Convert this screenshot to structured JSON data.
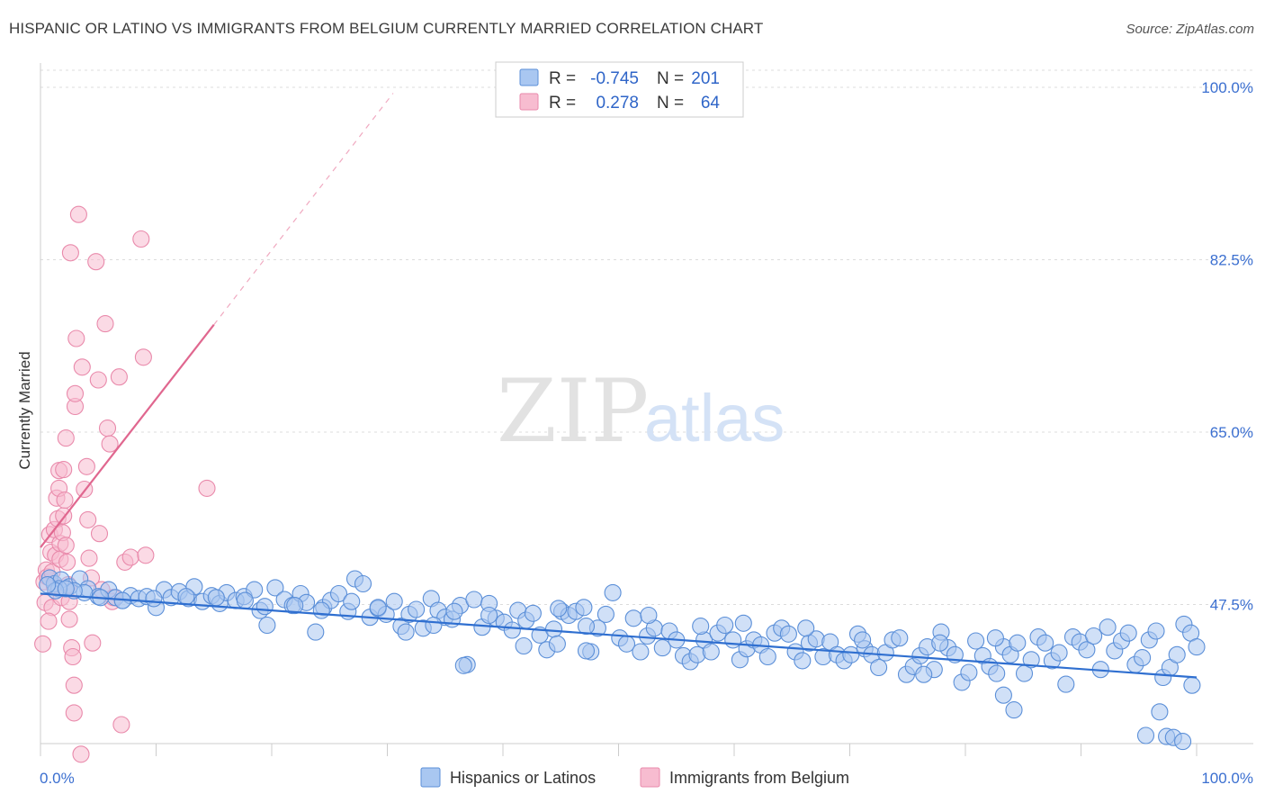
{
  "title": "HISPANIC OR LATINO VS IMMIGRANTS FROM BELGIUM CURRENTLY MARRIED CORRELATION CHART",
  "source": "Source: ZipAtlas.com",
  "watermark": {
    "part1": "ZIP",
    "part2": "atlas"
  },
  "colors": {
    "blue_fill": "#a9c7f1",
    "blue_stroke": "#5b8fd8",
    "blue_line": "#2f6fd0",
    "pink_fill": "#f7bcd0",
    "pink_stroke": "#e98aab",
    "pink_line": "#e0678f",
    "axis_text": "#3b6fd0",
    "grid": "#dddddd"
  },
  "legend": {
    "rows": [
      {
        "r_label": "R =",
        "r_value": "-0.745",
        "n_label": "N =",
        "n_value": "201"
      },
      {
        "r_label": "R =",
        "r_value": "0.278",
        "n_label": "N =",
        "n_value": "64"
      }
    ]
  },
  "chart_data": {
    "type": "scatter",
    "title": "HISPANIC OR LATINO VS IMMIGRANTS FROM BELGIUM CURRENTLY MARRIED CORRELATION CHART",
    "xlabel": "",
    "ylabel": "Currently Married",
    "xlim": [
      0,
      100
    ],
    "ylim": [
      32,
      102
    ],
    "x_tick_labels": {
      "left": "0.0%",
      "right": "100.0%"
    },
    "y_ticks": [
      {
        "value": 47.5,
        "label": "47.5%"
      },
      {
        "value": 65.0,
        "label": "65.0%"
      },
      {
        "value": 82.5,
        "label": "82.5%"
      },
      {
        "value": 100.0,
        "label": "100.0%"
      }
    ],
    "series": [
      {
        "name": "Hispanics or Latinos",
        "color": "#a9c7f1",
        "r": -0.745,
        "n": 201,
        "trend": {
          "x0": 0,
          "y0": 48.6,
          "x1": 100,
          "y1": 40.1
        },
        "points": [
          [
            0.8,
            50.2
          ],
          [
            1.2,
            49.6
          ],
          [
            1.8,
            50.0
          ],
          [
            2.5,
            49.3
          ],
          [
            3.4,
            50.1
          ],
          [
            4.1,
            49.1
          ],
          [
            5.0,
            48.3
          ],
          [
            5.9,
            49.0
          ],
          [
            6.5,
            48.2
          ],
          [
            7.1,
            47.9
          ],
          [
            7.8,
            48.4
          ],
          [
            8.5,
            48.1
          ],
          [
            9.2,
            48.3
          ],
          [
            10.0,
            47.2
          ],
          [
            10.7,
            49.0
          ],
          [
            11.3,
            48.2
          ],
          [
            12.0,
            48.8
          ],
          [
            12.8,
            48.1
          ],
          [
            13.3,
            49.3
          ],
          [
            14.0,
            47.8
          ],
          [
            14.8,
            48.4
          ],
          [
            15.5,
            47.6
          ],
          [
            16.1,
            48.7
          ],
          [
            16.9,
            47.9
          ],
          [
            17.6,
            48.3
          ],
          [
            18.5,
            49.0
          ],
          [
            19.0,
            46.9
          ],
          [
            19.6,
            45.4
          ],
          [
            20.3,
            49.2
          ],
          [
            21.1,
            48.0
          ],
          [
            21.8,
            47.4
          ],
          [
            22.5,
            48.6
          ],
          [
            23.0,
            47.7
          ],
          [
            23.8,
            44.7
          ],
          [
            24.5,
            47.2
          ],
          [
            25.1,
            47.9
          ],
          [
            25.8,
            48.6
          ],
          [
            26.6,
            46.8
          ],
          [
            27.2,
            50.1
          ],
          [
            27.9,
            49.6
          ],
          [
            28.5,
            46.2
          ],
          [
            29.2,
            47.1
          ],
          [
            29.9,
            46.5
          ],
          [
            30.6,
            47.8
          ],
          [
            31.2,
            45.3
          ],
          [
            31.9,
            46.5
          ],
          [
            32.5,
            47.0
          ],
          [
            33.1,
            45.1
          ],
          [
            33.8,
            48.1
          ],
          [
            34.4,
            46.9
          ],
          [
            35.0,
            46.2
          ],
          [
            35.6,
            46.0
          ],
          [
            36.3,
            47.4
          ],
          [
            36.9,
            41.4
          ],
          [
            37.5,
            48.0
          ],
          [
            38.2,
            45.2
          ],
          [
            38.8,
            47.6
          ],
          [
            39.4,
            46.1
          ],
          [
            40.1,
            45.7
          ],
          [
            40.8,
            44.9
          ],
          [
            41.3,
            46.9
          ],
          [
            42.0,
            45.9
          ],
          [
            42.6,
            46.6
          ],
          [
            43.2,
            44.4
          ],
          [
            43.8,
            42.9
          ],
          [
            44.4,
            45.0
          ],
          [
            45.1,
            46.8
          ],
          [
            45.7,
            46.4
          ],
          [
            46.3,
            46.8
          ],
          [
            47.0,
            47.2
          ],
          [
            47.6,
            42.7
          ],
          [
            48.2,
            45.1
          ],
          [
            48.9,
            46.5
          ],
          [
            49.5,
            48.7
          ],
          [
            50.1,
            44.1
          ],
          [
            50.7,
            43.5
          ],
          [
            51.3,
            46.1
          ],
          [
            51.9,
            42.7
          ],
          [
            52.5,
            44.3
          ],
          [
            53.1,
            45.1
          ],
          [
            53.8,
            43.1
          ],
          [
            54.4,
            44.8
          ],
          [
            55.0,
            43.9
          ],
          [
            55.6,
            42.3
          ],
          [
            56.2,
            41.7
          ],
          [
            56.8,
            42.4
          ],
          [
            57.4,
            43.9
          ],
          [
            58.0,
            42.7
          ],
          [
            58.6,
            44.6
          ],
          [
            59.2,
            45.4
          ],
          [
            59.9,
            43.9
          ],
          [
            60.5,
            41.9
          ],
          [
            61.1,
            43.0
          ],
          [
            61.7,
            43.9
          ],
          [
            62.3,
            43.4
          ],
          [
            62.9,
            42.2
          ],
          [
            63.5,
            44.6
          ],
          [
            64.1,
            45.1
          ],
          [
            64.7,
            44.5
          ],
          [
            65.3,
            42.7
          ],
          [
            65.9,
            41.8
          ],
          [
            66.5,
            43.6
          ],
          [
            67.1,
            44.0
          ],
          [
            67.7,
            42.2
          ],
          [
            68.3,
            43.7
          ],
          [
            68.9,
            42.4
          ],
          [
            69.5,
            41.8
          ],
          [
            70.1,
            42.4
          ],
          [
            70.7,
            44.5
          ],
          [
            71.3,
            43.0
          ],
          [
            71.9,
            42.4
          ],
          [
            72.5,
            41.1
          ],
          [
            73.1,
            42.6
          ],
          [
            73.7,
            43.9
          ],
          [
            74.3,
            44.1
          ],
          [
            74.9,
            40.4
          ],
          [
            75.5,
            41.2
          ],
          [
            76.1,
            42.3
          ],
          [
            76.7,
            43.2
          ],
          [
            77.3,
            40.9
          ],
          [
            77.9,
            44.7
          ],
          [
            78.5,
            43.1
          ],
          [
            79.1,
            42.4
          ],
          [
            79.7,
            39.6
          ],
          [
            80.3,
            40.6
          ],
          [
            80.9,
            43.8
          ],
          [
            81.5,
            42.3
          ],
          [
            82.1,
            41.2
          ],
          [
            82.7,
            40.5
          ],
          [
            83.3,
            43.2
          ],
          [
            83.9,
            42.4
          ],
          [
            84.5,
            43.6
          ],
          [
            85.1,
            40.5
          ],
          [
            85.7,
            41.9
          ],
          [
            86.3,
            44.2
          ],
          [
            86.9,
            43.6
          ],
          [
            87.5,
            41.8
          ],
          [
            88.1,
            42.6
          ],
          [
            88.7,
            39.4
          ],
          [
            89.3,
            44.2
          ],
          [
            89.9,
            43.7
          ],
          [
            90.5,
            42.9
          ],
          [
            91.1,
            44.3
          ],
          [
            91.7,
            40.9
          ],
          [
            92.3,
            45.2
          ],
          [
            92.9,
            42.8
          ],
          [
            93.5,
            43.8
          ],
          [
            94.1,
            44.6
          ],
          [
            94.7,
            41.4
          ],
          [
            95.3,
            42.1
          ],
          [
            95.9,
            43.9
          ],
          [
            96.5,
            44.8
          ],
          [
            97.1,
            40.1
          ],
          [
            97.7,
            41.1
          ],
          [
            98.3,
            42.4
          ],
          [
            98.9,
            45.5
          ],
          [
            99.5,
            44.6
          ],
          [
            100.0,
            43.2
          ],
          [
            84.2,
            36.8
          ],
          [
            83.3,
            38.3
          ],
          [
            76.4,
            40.4
          ],
          [
            71.1,
            43.9
          ],
          [
            96.8,
            36.6
          ],
          [
            97.4,
            34.1
          ],
          [
            98.0,
            34.0
          ],
          [
            98.8,
            33.6
          ],
          [
            95.6,
            34.2
          ],
          [
            99.6,
            39.3
          ],
          [
            82.6,
            44.1
          ],
          [
            77.8,
            43.6
          ],
          [
            66.2,
            45.1
          ],
          [
            60.8,
            45.6
          ],
          [
            57.1,
            45.3
          ],
          [
            52.6,
            46.4
          ],
          [
            47.2,
            42.8
          ],
          [
            44.7,
            43.5
          ],
          [
            41.8,
            43.3
          ],
          [
            38.8,
            46.4
          ],
          [
            35.8,
            46.8
          ],
          [
            34.0,
            45.4
          ],
          [
            31.6,
            44.7
          ],
          [
            29.2,
            47.2
          ],
          [
            26.9,
            47.8
          ],
          [
            24.3,
            46.9
          ],
          [
            22.0,
            47.4
          ],
          [
            19.4,
            47.3
          ],
          [
            17.7,
            47.9
          ],
          [
            15.2,
            48.2
          ],
          [
            12.6,
            48.3
          ],
          [
            9.8,
            48.1
          ],
          [
            7.1,
            47.9
          ],
          [
            5.2,
            48.2
          ],
          [
            3.8,
            48.7
          ],
          [
            2.9,
            48.9
          ],
          [
            1.6,
            49.1
          ],
          [
            1.3,
            48.9
          ],
          [
            0.6,
            49.5
          ],
          [
            2.2,
            49.1
          ],
          [
            36.6,
            41.3
          ],
          [
            44.8,
            47.1
          ],
          [
            47.2,
            45.3
          ]
        ]
      },
      {
        "name": "Immigrants from Belgium",
        "color": "#f7bcd0",
        "r": 0.278,
        "n": 64,
        "trend": {
          "x0": 0,
          "y0": 53.3,
          "x1": 15,
          "y1": 75.9
        },
        "trend_dashed": {
          "x0": 15,
          "y0": 75.9,
          "x1": 30.5,
          "y1": 99.4
        },
        "points": [
          [
            0.2,
            43.5
          ],
          [
            0.3,
            49.8
          ],
          [
            0.4,
            47.7
          ],
          [
            0.5,
            51.0
          ],
          [
            0.6,
            50.3
          ],
          [
            0.8,
            54.6
          ],
          [
            0.9,
            52.8
          ],
          [
            1.0,
            50.8
          ],
          [
            1.0,
            47.2
          ],
          [
            1.2,
            49.4
          ],
          [
            1.2,
            55.1
          ],
          [
            1.3,
            52.5
          ],
          [
            1.4,
            58.3
          ],
          [
            1.5,
            56.2
          ],
          [
            1.6,
            59.3
          ],
          [
            1.6,
            61.1
          ],
          [
            1.7,
            53.7
          ],
          [
            1.7,
            52.1
          ],
          [
            1.8,
            48.2
          ],
          [
            1.9,
            54.8
          ],
          [
            2.0,
            61.2
          ],
          [
            2.0,
            56.5
          ],
          [
            2.1,
            58.1
          ],
          [
            2.2,
            64.4
          ],
          [
            2.2,
            53.5
          ],
          [
            2.3,
            51.8
          ],
          [
            2.4,
            49.5
          ],
          [
            2.5,
            47.8
          ],
          [
            2.5,
            46.0
          ],
          [
            2.6,
            83.2
          ],
          [
            2.7,
            43.1
          ],
          [
            2.8,
            42.2
          ],
          [
            2.9,
            39.3
          ],
          [
            2.9,
            36.5
          ],
          [
            3.0,
            67.6
          ],
          [
            3.0,
            68.9
          ],
          [
            3.1,
            74.5
          ],
          [
            3.3,
            87.1
          ],
          [
            3.5,
            32.3
          ],
          [
            3.6,
            71.6
          ],
          [
            3.8,
            59.2
          ],
          [
            4.0,
            61.5
          ],
          [
            4.1,
            56.1
          ],
          [
            4.2,
            52.2
          ],
          [
            4.4,
            50.2
          ],
          [
            4.5,
            43.6
          ],
          [
            4.8,
            82.3
          ],
          [
            5.0,
            70.3
          ],
          [
            5.1,
            54.7
          ],
          [
            5.3,
            49.0
          ],
          [
            5.6,
            76.0
          ],
          [
            5.8,
            65.4
          ],
          [
            6.0,
            63.8
          ],
          [
            6.2,
            47.8
          ],
          [
            6.3,
            48.2
          ],
          [
            6.8,
            70.6
          ],
          [
            7.0,
            35.3
          ],
          [
            7.3,
            51.8
          ],
          [
            7.8,
            52.3
          ],
          [
            8.7,
            84.6
          ],
          [
            8.9,
            72.6
          ],
          [
            9.1,
            52.5
          ],
          [
            14.4,
            59.3
          ],
          [
            0.7,
            45.8
          ]
        ]
      }
    ]
  },
  "bottom_legend": [
    {
      "label": "Hispanics or Latinos"
    },
    {
      "label": "Immigrants from Belgium"
    }
  ]
}
